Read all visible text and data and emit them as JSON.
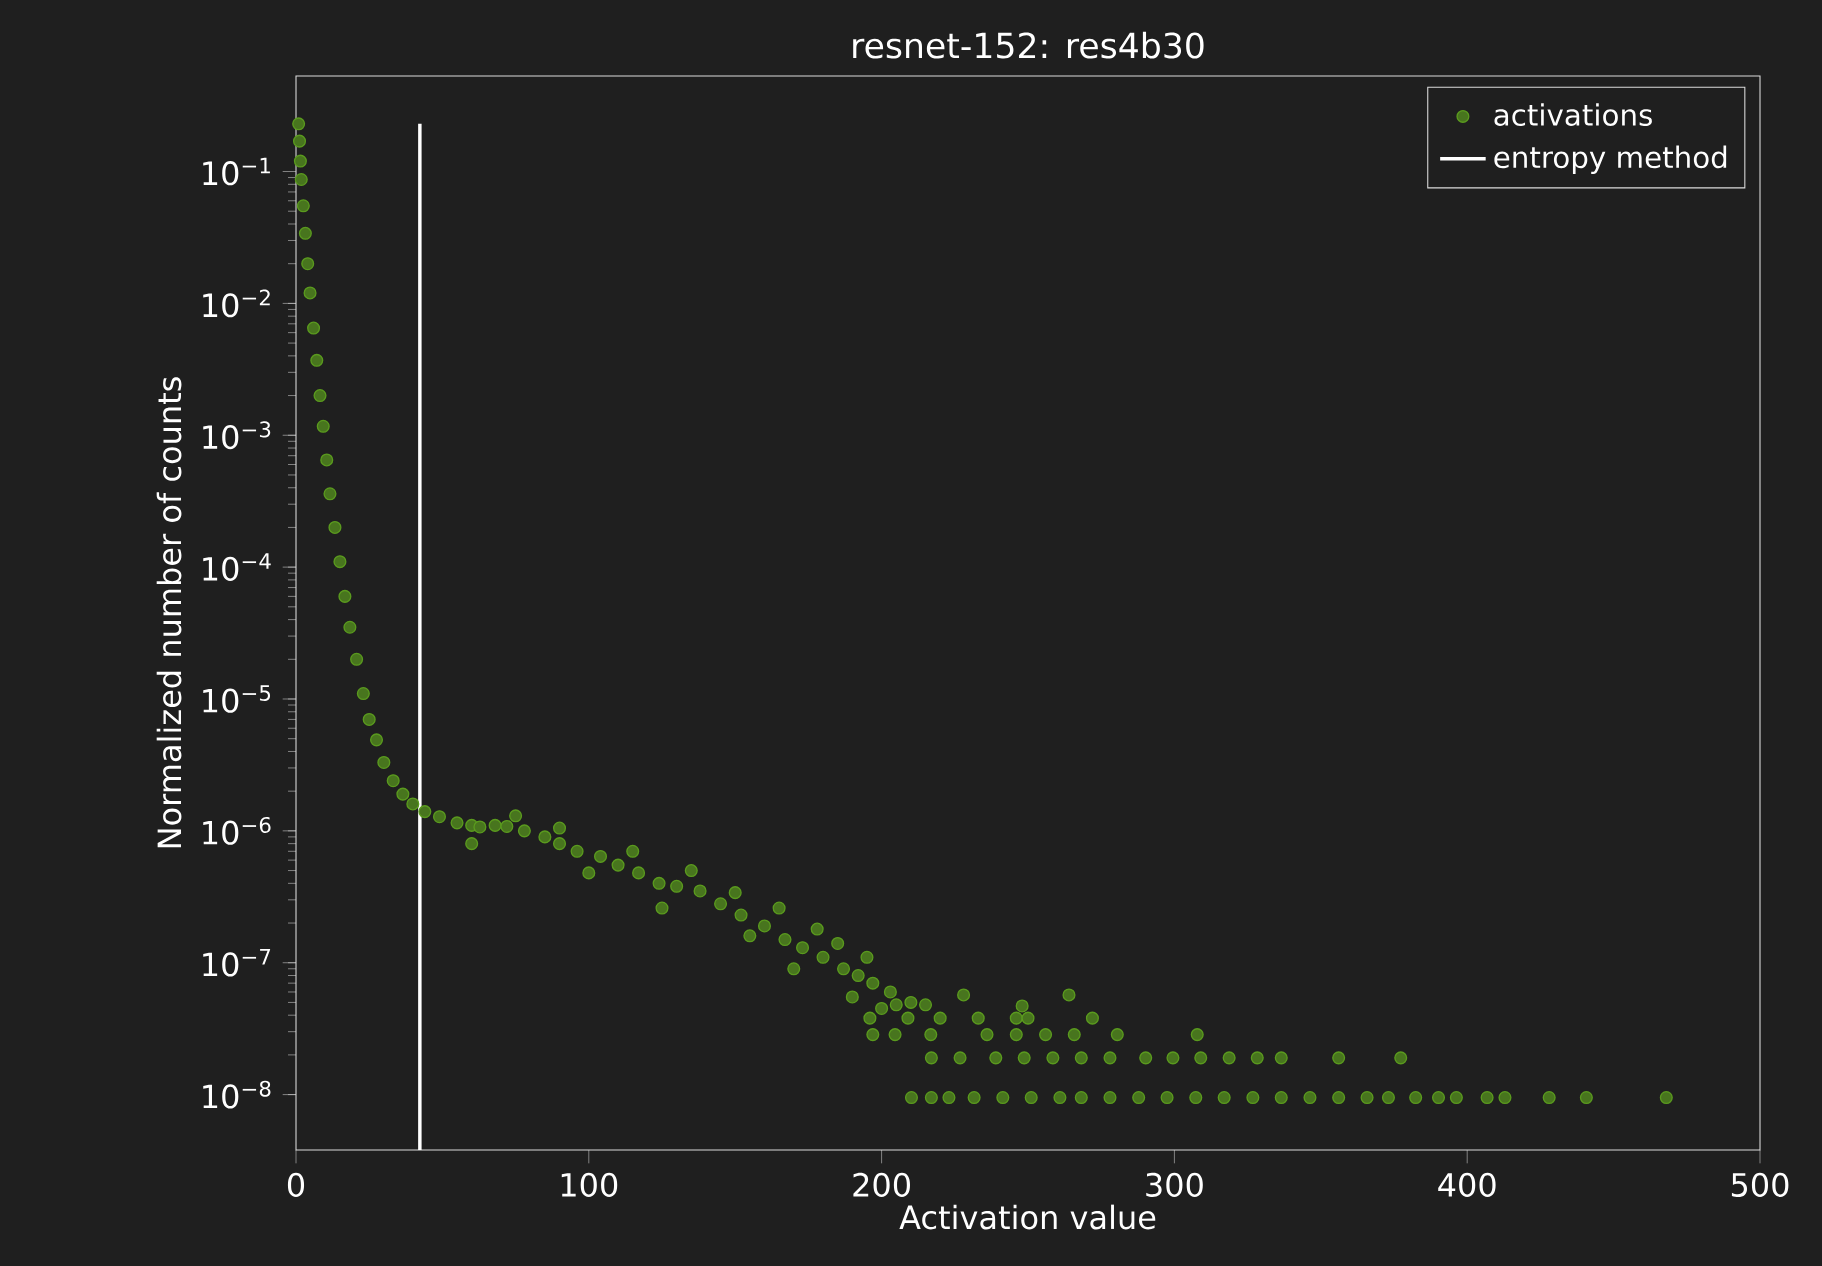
{
  "chart_data": {
    "type": "scatter",
    "title": "resnet-152: res4b30",
    "xlabel": "Activation value",
    "ylabel": "Normalized number of counts",
    "log": "y",
    "legend": "top right",
    "xlim": [
      0,
      500
    ],
    "ylim": [
      3.8e-09,
      0.53
    ],
    "xticks": [
      0,
      100,
      200,
      300,
      400,
      500
    ],
    "yticks": [
      {
        "value": 1e-08,
        "label": "10$^{−8}$"
      },
      {
        "value": 1e-07,
        "label": "10$^{−7}$"
      },
      {
        "value": 1e-06,
        "label": "10$^{−6}$"
      },
      {
        "value": 1e-05,
        "label": "10$^{−5}$"
      },
      {
        "value": 0.0001,
        "label": "10$^{−4}$"
      },
      {
        "value": 0.001,
        "label": "10$^{−3}$"
      },
      {
        "value": 0.01,
        "label": "10$^{−2}$"
      },
      {
        "value": 0.1,
        "label": "10$^{−1}$"
      }
    ],
    "series": [
      {
        "name": "activations",
        "color": "#5a9a1e",
        "marker": "circle",
        "x": [
          0.9,
          1.2,
          1.5,
          1.8,
          2.5,
          3.2,
          4,
          4.8,
          6,
          7.1,
          8.2,
          9.3,
          10.5,
          11.6,
          13.3,
          15,
          16.7,
          18.4,
          20.7,
          23,
          25,
          27.5,
          30,
          33.2,
          36.5,
          39.9,
          44,
          49,
          55,
          60,
          62.8,
          68,
          72,
          78,
          85,
          90,
          96,
          104,
          110,
          117,
          124,
          130,
          138,
          145,
          152,
          160,
          167,
          173,
          180,
          187,
          192,
          197,
          203,
          60,
          75,
          90,
          100,
          115,
          125,
          135,
          150,
          155,
          165,
          170,
          178,
          185,
          190,
          195,
          200,
          205,
          210,
          215,
          196,
          209,
          220,
          233,
          246,
          250,
          272,
          197,
          204.6,
          216.8,
          236,
          246,
          256,
          265.8,
          280.5,
          307.8,
          264,
          248,
          228,
          217,
          226.8,
          239,
          248.7,
          258.5,
          268.2,
          278,
          290.2,
          299.5,
          309,
          318.7,
          328.3,
          336.5,
          356.1,
          377.3,
          210.2,
          217,
          223,
          231.6,
          241.4,
          251.1,
          260.9,
          268.2,
          278,
          287.8,
          297.5,
          307.3,
          317,
          326.8,
          336.5,
          346.3,
          356.1,
          365.8,
          373.1,
          382.4,
          390.2,
          396.3,
          406.8,
          412.9,
          428,
          440.7,
          468
        ],
        "values": [
          0.23,
          0.17,
          0.12,
          0.087,
          0.055,
          0.034,
          0.02,
          0.012,
          0.0065,
          0.0037,
          0.002,
          0.00117,
          0.00065,
          0.00036,
          0.0002,
          0.00011,
          6e-05,
          3.5e-05,
          2e-05,
          1.1e-05,
          7e-06,
          4.9e-06,
          3.3e-06,
          2.4e-06,
          1.9e-06,
          1.6e-06,
          1.4e-06,
          1.28e-06,
          1.15e-06,
          1.1e-06,
          1.07e-06,
          1.1e-06,
          1.08e-06,
          1e-06,
          9e-07,
          8e-07,
          7e-07,
          6.4e-07,
          5.5e-07,
          4.8e-07,
          4e-07,
          3.8e-07,
          3.5e-07,
          2.8e-07,
          2.3e-07,
          1.9e-07,
          1.5e-07,
          1.3e-07,
          1.1e-07,
          9e-08,
          8e-08,
          7e-08,
          6e-08,
          8e-07,
          1.3e-06,
          1.05e-06,
          4.8e-07,
          7e-07,
          2.6e-07,
          5e-07,
          3.4e-07,
          1.6e-07,
          2.6e-07,
          9e-08,
          1.8e-07,
          1.4e-07,
          5.5e-08,
          1.1e-07,
          4.5e-08,
          4.8e-08,
          5e-08,
          4.8e-08,
          3.8e-08,
          3.8e-08,
          3.8e-08,
          3.8e-08,
          3.8e-08,
          3.8e-08,
          3.8e-08,
          2.85e-08,
          2.85e-08,
          2.85e-08,
          2.85e-08,
          2.85e-08,
          2.85e-08,
          2.85e-08,
          2.85e-08,
          2.85e-08,
          5.7e-08,
          4.7e-08,
          5.7e-08,
          1.9e-08,
          1.9e-08,
          1.9e-08,
          1.9e-08,
          1.9e-08,
          1.9e-08,
          1.9e-08,
          1.9e-08,
          1.9e-08,
          1.9e-08,
          1.9e-08,
          1.9e-08,
          1.9e-08,
          1.9e-08,
          1.9e-08,
          9.5e-09,
          9.5e-09,
          9.5e-09,
          9.5e-09,
          9.5e-09,
          9.5e-09,
          9.5e-09,
          9.5e-09,
          9.5e-09,
          9.5e-09,
          9.5e-09,
          9.5e-09,
          9.5e-09,
          9.5e-09,
          9.5e-09,
          9.5e-09,
          9.5e-09,
          9.5e-09,
          9.5e-09,
          9.5e-09,
          9.5e-09,
          9.5e-09,
          9.5e-09,
          9.5e-09,
          9.5e-09,
          9.5e-09,
          9.5e-09
        ]
      },
      {
        "name": "entropy method",
        "type": "line",
        "color": "#ffffff",
        "marker": "none",
        "x": [
          42.3,
          42.3
        ],
        "values": [
          0.23,
          3.8e-09
        ]
      }
    ]
  }
}
